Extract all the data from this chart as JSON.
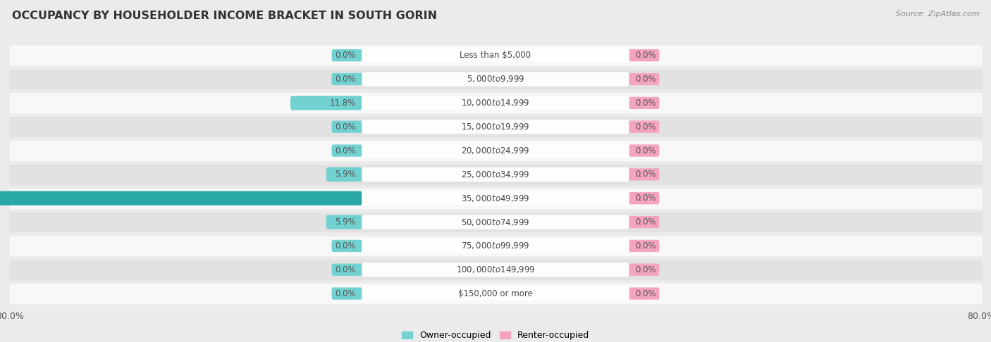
{
  "title": "OCCUPANCY BY HOUSEHOLDER INCOME BRACKET IN SOUTH GORIN",
  "source": "Source: ZipAtlas.com",
  "categories": [
    "Less than $5,000",
    "$5,000 to $9,999",
    "$10,000 to $14,999",
    "$15,000 to $19,999",
    "$20,000 to $24,999",
    "$25,000 to $34,999",
    "$35,000 to $49,999",
    "$50,000 to $74,999",
    "$75,000 to $99,999",
    "$100,000 to $149,999",
    "$150,000 or more"
  ],
  "owner_values": [
    0.0,
    0.0,
    11.8,
    0.0,
    0.0,
    5.9,
    76.5,
    5.9,
    0.0,
    0.0,
    0.0
  ],
  "renter_values": [
    0.0,
    0.0,
    0.0,
    0.0,
    0.0,
    0.0,
    0.0,
    0.0,
    0.0,
    0.0,
    0.0
  ],
  "owner_color_light": "#72d2d2",
  "owner_color_dark": "#29a8a8",
  "renter_color": "#f4a4bc",
  "axis_limit": 80.0,
  "bg_color": "#ebebeb",
  "row_bg_light": "#f8f8f8",
  "row_bg_dark": "#e2e2e2",
  "label_color": "#555555",
  "title_color": "#333333",
  "legend_owner": "Owner-occupied",
  "legend_renter": "Renter-occupied"
}
